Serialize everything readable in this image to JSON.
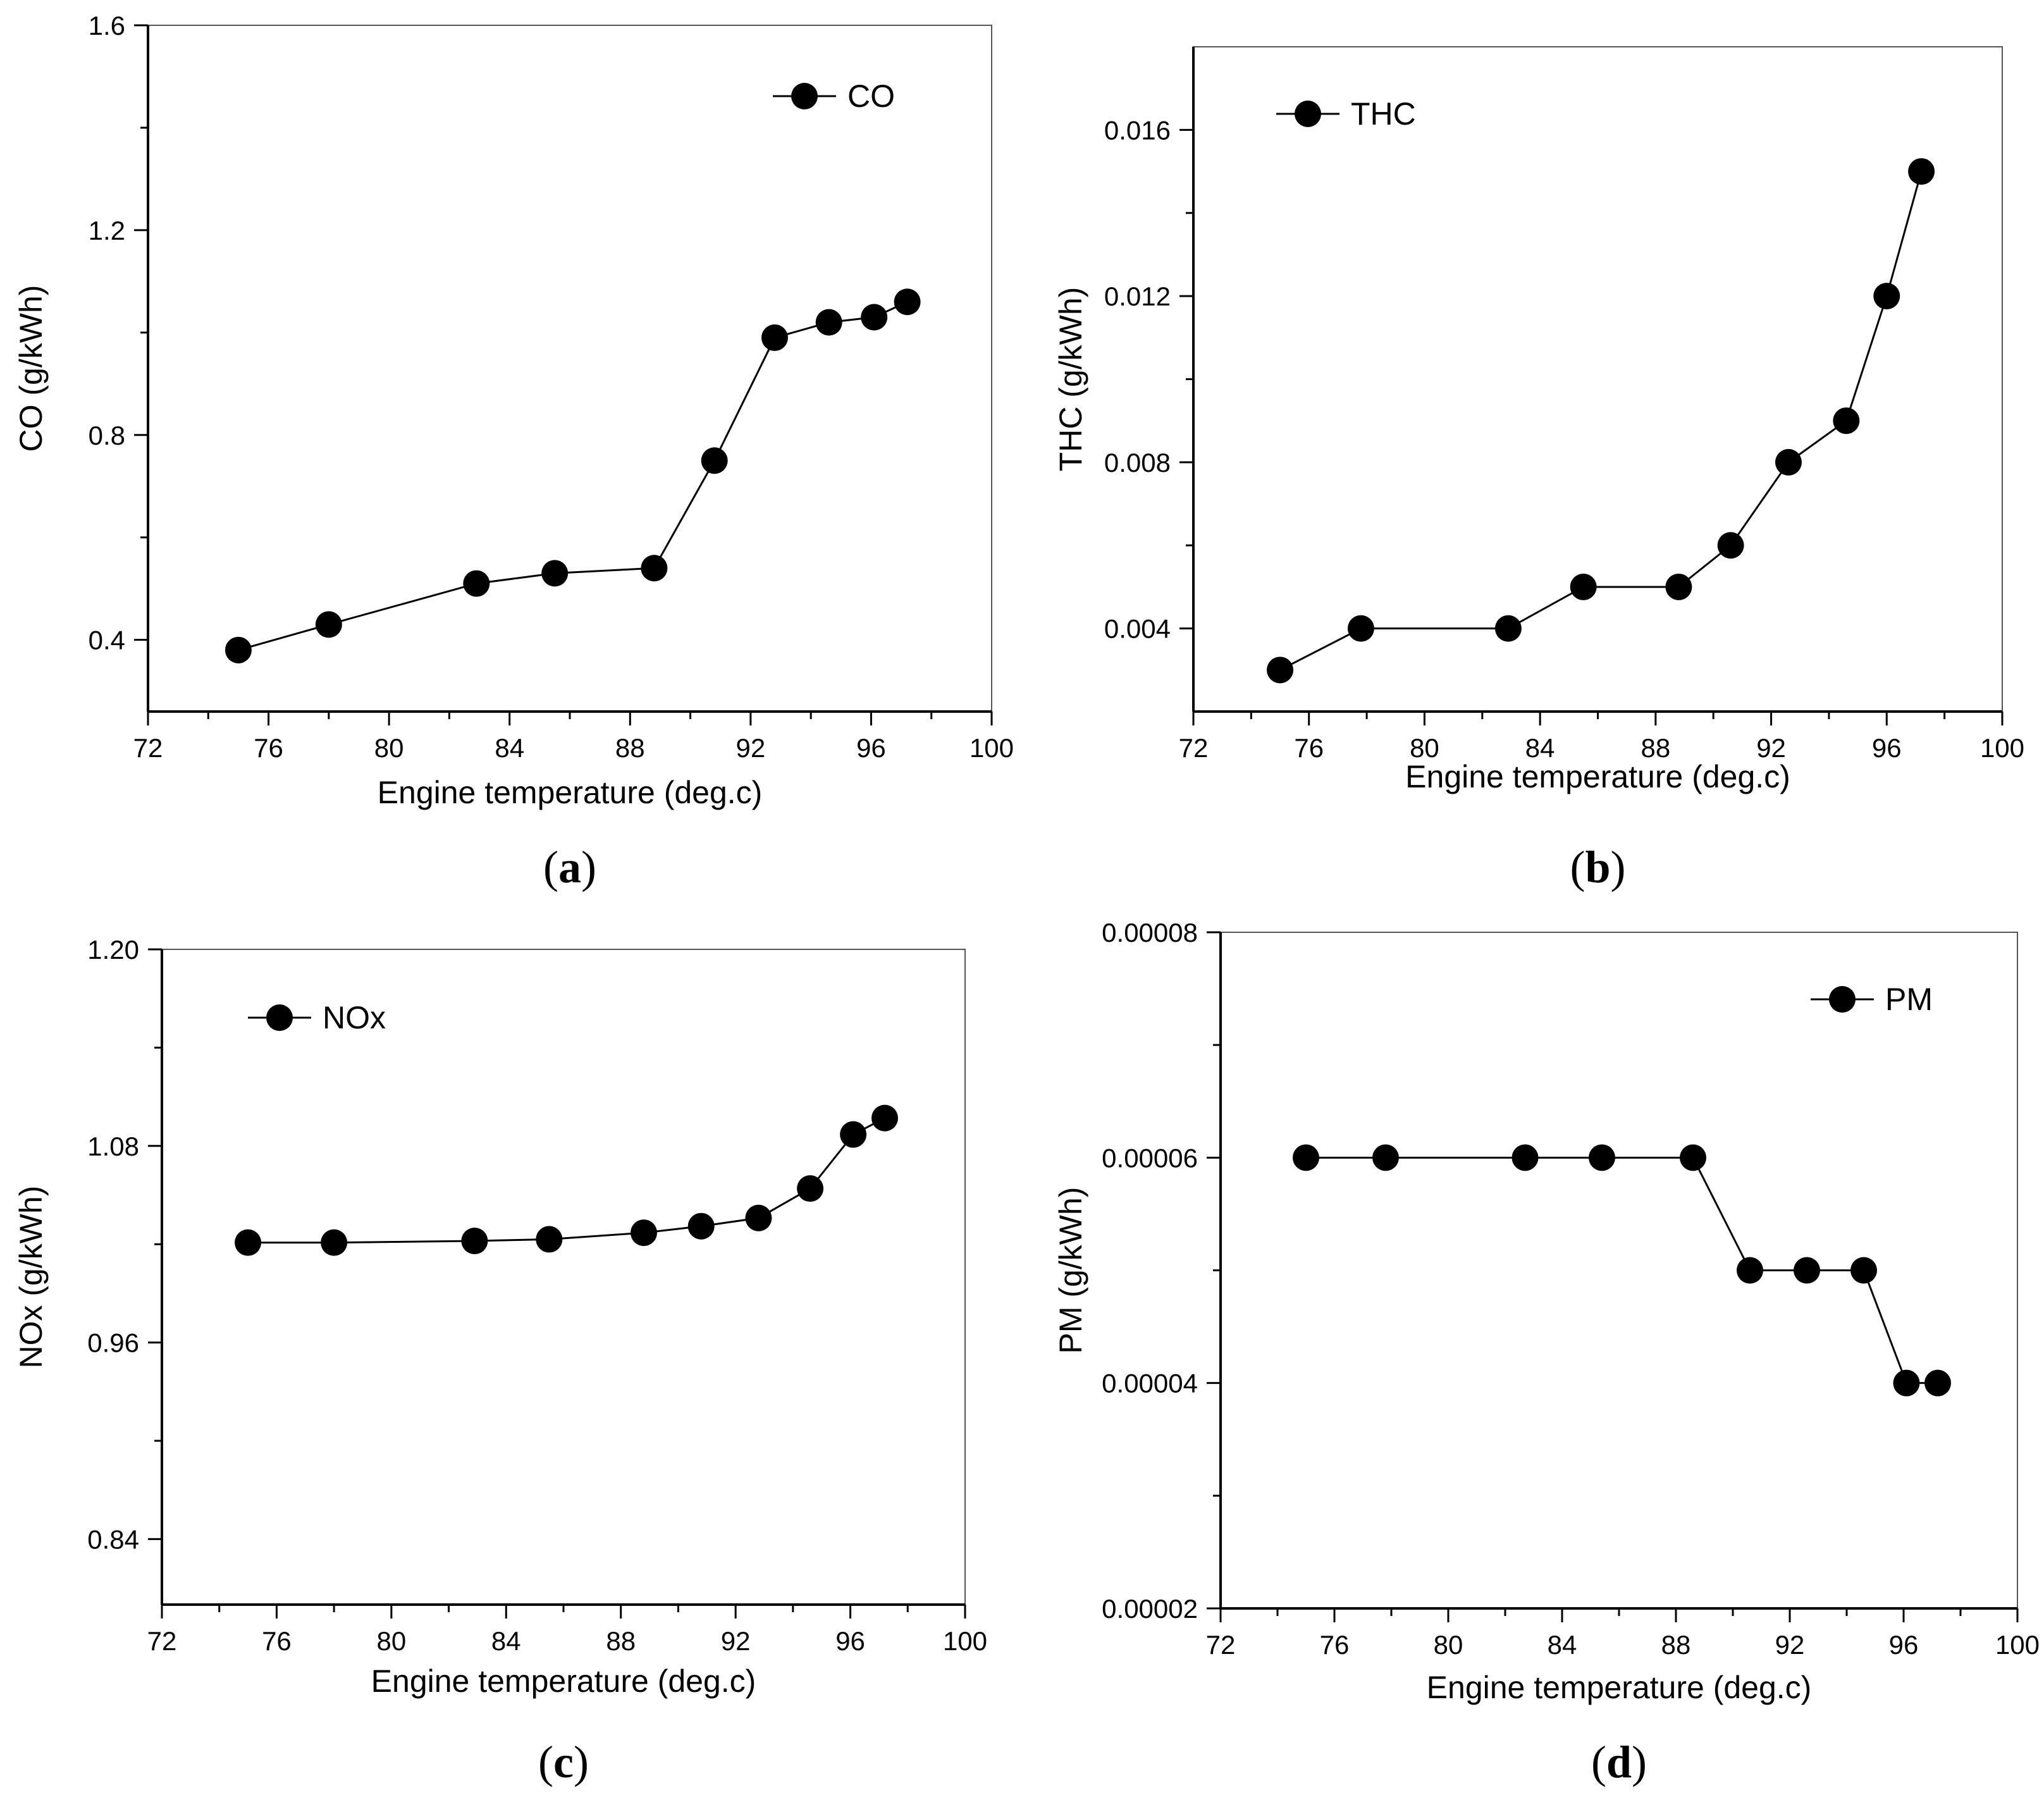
{
  "figure": {
    "colors": {
      "axis": "#000000",
      "marker": "#000000",
      "line": "#000000",
      "background": "#ffffff"
    },
    "marker_icon": "filled-circle"
  },
  "chart_data": [
    {
      "id": "a",
      "type": "line",
      "panel_label": "(a)",
      "panel_letter": "a",
      "title": "",
      "xlabel": "Engine temperature (deg.c)",
      "ylabel": "CO (g/kWh)",
      "xlim": [
        72,
        100
      ],
      "ylim": [
        0.26,
        1.6
      ],
      "xticks": [
        72,
        76,
        80,
        84,
        88,
        92,
        96,
        100
      ],
      "xtick_labels": [
        "72",
        "76",
        "80",
        "84",
        "88",
        "92",
        "96",
        "100"
      ],
      "yticks": [
        0.4,
        0.8,
        1.2,
        1.6
      ],
      "ytick_labels": [
        "0.4",
        "0.8",
        "1.2",
        "1.6"
      ],
      "legend_position": "top-right",
      "grid": false,
      "series": [
        {
          "name": "CO",
          "x": [
            75.0,
            78.0,
            82.9,
            85.5,
            88.8,
            90.8,
            92.8,
            94.6,
            96.1,
            97.2
          ],
          "values": [
            0.38,
            0.43,
            0.51,
            0.53,
            0.54,
            0.75,
            0.99,
            1.02,
            1.03,
            1.06
          ]
        }
      ]
    },
    {
      "id": "b",
      "type": "line",
      "panel_label": "(b)",
      "panel_letter": "b",
      "title": "",
      "xlabel": "Engine temperature (deg.c)",
      "ylabel": "THC (g/kWh)",
      "xlim": [
        72,
        100
      ],
      "ylim": [
        0.002,
        0.018
      ],
      "xticks": [
        72,
        76,
        80,
        84,
        88,
        92,
        96,
        100
      ],
      "xtick_labels": [
        "72",
        "76",
        "80",
        "84",
        "88",
        "92",
        "96",
        "100"
      ],
      "yticks": [
        0.004,
        0.008,
        0.012,
        0.016
      ],
      "ytick_labels": [
        "0.004",
        "0.008",
        "0.012",
        "0.016"
      ],
      "legend_position": "top-left",
      "grid": false,
      "series": [
        {
          "name": "THC",
          "x": [
            75.0,
            77.8,
            82.9,
            85.5,
            88.8,
            90.6,
            92.6,
            94.6,
            96.0,
            97.2
          ],
          "values": [
            0.003,
            0.004,
            0.004,
            0.005,
            0.005,
            0.006,
            0.008,
            0.009,
            0.012,
            0.015
          ]
        }
      ]
    },
    {
      "id": "c",
      "type": "line",
      "panel_label": "(c)",
      "panel_letter": "c",
      "title": "",
      "xlabel": "Engine temperature (deg.c)",
      "ylabel": "NOx (g/kWh)",
      "xlim": [
        72,
        100
      ],
      "ylim": [
        0.8,
        1.2
      ],
      "xticks": [
        72,
        76,
        80,
        84,
        88,
        92,
        96,
        100
      ],
      "xtick_labels": [
        "72",
        "76",
        "80",
        "84",
        "88",
        "92",
        "96",
        "100"
      ],
      "yticks": [
        0.84,
        0.96,
        1.08,
        1.2
      ],
      "ytick_labels": [
        "0.84",
        "0.96",
        "1.08",
        "1.20"
      ],
      "legend_position": "top-left",
      "grid": false,
      "series": [
        {
          "name": "NOx",
          "x": [
            75.0,
            78.0,
            82.9,
            85.5,
            88.8,
            90.8,
            92.8,
            94.6,
            96.1,
            97.2
          ],
          "values": [
            1.021,
            1.021,
            1.022,
            1.023,
            1.027,
            1.031,
            1.036,
            1.054,
            1.087,
            1.097
          ]
        }
      ]
    },
    {
      "id": "d",
      "type": "line",
      "panel_label": "(d)",
      "panel_letter": "d",
      "title": "",
      "xlabel": "Engine temperature (deg.c)",
      "ylabel": "PM (g/kWh)",
      "xlim": [
        72,
        100
      ],
      "ylim": [
        2e-05,
        8e-05
      ],
      "xticks": [
        72,
        76,
        80,
        84,
        88,
        92,
        96,
        100
      ],
      "xtick_labels": [
        "72",
        "76",
        "80",
        "84",
        "88",
        "92",
        "96",
        "100"
      ],
      "yticks": [
        2e-05,
        4e-05,
        6e-05,
        8e-05
      ],
      "ytick_labels": [
        "0.00002",
        "0.00004",
        "0.00006",
        "0.00008"
      ],
      "legend_position": "top-right",
      "grid": false,
      "series": [
        {
          "name": "PM",
          "x": [
            75.0,
            77.8,
            82.7,
            85.4,
            88.6,
            90.6,
            92.6,
            94.6,
            96.1,
            97.2
          ],
          "values": [
            6e-05,
            6e-05,
            6e-05,
            6e-05,
            6e-05,
            5e-05,
            5e-05,
            5e-05,
            4e-05,
            4e-05
          ]
        }
      ]
    }
  ]
}
